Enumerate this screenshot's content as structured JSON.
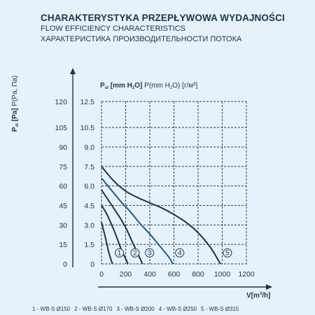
{
  "header": {
    "title_pl": "CHARAKTERYSTYKA PRZEPŁYWOWA WYDAJNOŚCI",
    "title_en": "FLOW EFFICIENCY CHARACTERISTICS",
    "title_ru": "ХАРАКТЕРИСТИКА ПРОИЗВОДИТЕЛЬНОСТИ ПОТОКА"
  },
  "chart_data": {
    "type": "line",
    "ylabel_pa": "P st [Pa] P(Pa, Па)",
    "ylabel_h2o": "P st [mm H2O] P(mm H2O) [г/м²]",
    "xlabel": "V[m³/h]",
    "xlim": [
      0,
      1200
    ],
    "ylim": [
      0,
      125
    ],
    "x_ticks": [
      "0",
      "200",
      "400",
      "600",
      "800",
      "1000",
      "1200"
    ],
    "y_ticks_pa": [
      "0",
      "15",
      "30",
      "45",
      "60",
      "75",
      "90",
      "105",
      "120"
    ],
    "y_ticks_h2o": [
      "0",
      "1.5",
      "3.0",
      "4.5",
      "6.0",
      "7.5",
      "9.0",
      "10.5",
      "12.5"
    ],
    "grid": true,
    "series": [
      {
        "name": "1 - WB-S Ø150",
        "marker": "1",
        "color": "#1d3548",
        "points": [
          [
            0,
            32
          ],
          [
            20,
            25
          ],
          [
            40,
            17
          ],
          [
            60,
            9
          ],
          [
            80,
            3
          ],
          [
            90,
            0
          ]
        ]
      },
      {
        "name": "2 - WB-S Ø170",
        "marker": "2",
        "color": "#1d3548",
        "points": [
          [
            0,
            45
          ],
          [
            40,
            39
          ],
          [
            80,
            31
          ],
          [
            120,
            22
          ],
          [
            160,
            12
          ],
          [
            200,
            4
          ],
          [
            220,
            0
          ]
        ]
      },
      {
        "name": "3 - WB-S Ø200",
        "marker": "3",
        "color": "#1d3548",
        "points": [
          [
            0,
            57
          ],
          [
            50,
            50
          ],
          [
            100,
            43
          ],
          [
            150,
            36
          ],
          [
            200,
            28
          ],
          [
            250,
            18
          ],
          [
            300,
            8
          ],
          [
            340,
            0
          ]
        ]
      },
      {
        "name": "4 - WB-S Ø250",
        "marker": "4",
        "color": "#1a5f8a",
        "points": [
          [
            0,
            66
          ],
          [
            80,
            57
          ],
          [
            160,
            48
          ],
          [
            240,
            40
          ],
          [
            320,
            31
          ],
          [
            400,
            23
          ],
          [
            480,
            14
          ],
          [
            560,
            5
          ],
          [
            590,
            0
          ]
        ]
      },
      {
        "name": "5 - WB-S Ø315",
        "marker": "5",
        "color": "#1d3548",
        "points": [
          [
            0,
            75
          ],
          [
            100,
            64
          ],
          [
            200,
            56
          ],
          [
            300,
            51
          ],
          [
            400,
            47
          ],
          [
            500,
            43
          ],
          [
            600,
            38
          ],
          [
            700,
            32
          ],
          [
            800,
            24
          ],
          [
            900,
            13
          ],
          [
            960,
            4
          ],
          [
            985,
            0
          ]
        ]
      }
    ],
    "legend": [
      "1 - WB-S Ø150",
      "2 - WB-S Ø170",
      "3 - WB-S Ø200",
      "4 - WB-S Ø250",
      "5 - WB-S Ø315"
    ],
    "legend_position": "bottom"
  }
}
